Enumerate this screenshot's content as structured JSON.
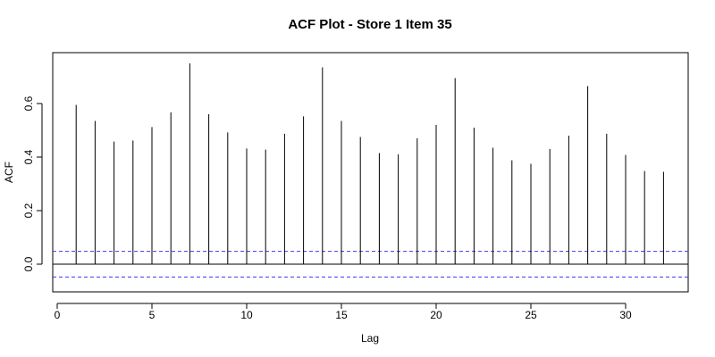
{
  "chart_data": {
    "type": "bar",
    "title": "ACF Plot - Store 1 Item 35",
    "xlabel": "Lag",
    "ylabel": "ACF",
    "xlim": [
      0,
      33
    ],
    "ylim": [
      -0.1,
      0.76
    ],
    "x_ticks": [
      0,
      5,
      10,
      15,
      20,
      25,
      30
    ],
    "y_ticks": [
      0.0,
      0.2,
      0.4,
      0.6
    ],
    "x_tick_labels": [
      "0",
      "5",
      "10",
      "15",
      "20",
      "25",
      "30"
    ],
    "y_tick_labels": [
      "0.0",
      "0.2",
      "0.4",
      "0.6"
    ],
    "lags": [
      1,
      2,
      3,
      4,
      5,
      6,
      7,
      8,
      9,
      10,
      11,
      12,
      13,
      14,
      15,
      16,
      17,
      18,
      19,
      20,
      21,
      22,
      23,
      24,
      25,
      26,
      27,
      28,
      29,
      30,
      31,
      32
    ],
    "values": [
      0.595,
      0.535,
      0.458,
      0.462,
      0.512,
      0.567,
      0.75,
      0.56,
      0.492,
      0.432,
      0.428,
      0.487,
      0.552,
      0.735,
      0.535,
      0.475,
      0.415,
      0.41,
      0.47,
      0.52,
      0.695,
      0.51,
      0.435,
      0.388,
      0.375,
      0.43,
      0.48,
      0.665,
      0.487,
      0.408,
      0.348,
      0.345
    ],
    "confidence_bound": 0.048,
    "grid": false,
    "colors": {
      "bars": "#000000",
      "zero_line": "#000000",
      "confidence": "#3b3bf5",
      "frame": "#000000"
    }
  }
}
